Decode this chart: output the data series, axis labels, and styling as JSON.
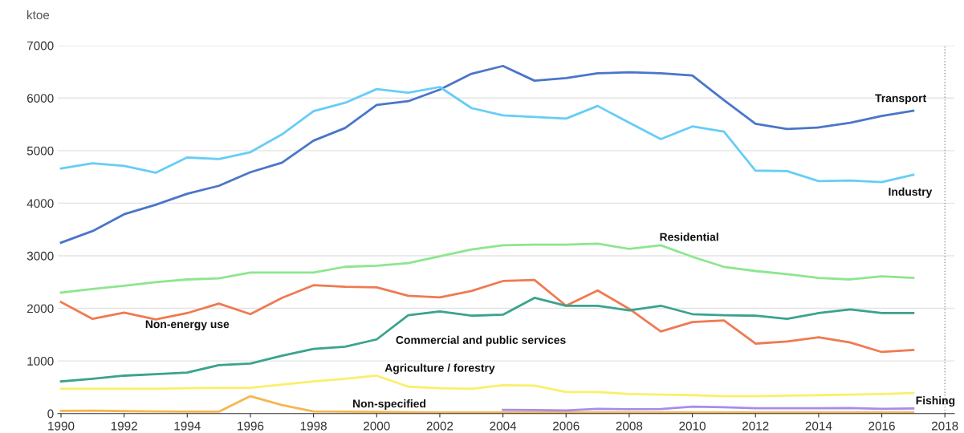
{
  "chart_data": {
    "type": "line",
    "ylabel": "ktoe",
    "x": [
      1990,
      1991,
      1992,
      1993,
      1994,
      1995,
      1996,
      1997,
      1998,
      1999,
      2000,
      2001,
      2002,
      2003,
      2004,
      2005,
      2006,
      2007,
      2008,
      2009,
      2010,
      2011,
      2012,
      2013,
      2014,
      2015,
      2016,
      2017
    ],
    "series": [
      {
        "name": "Transport",
        "color": "#4a76c9",
        "values": [
          3250,
          3470,
          3790,
          3970,
          4180,
          4330,
          4590,
          4770,
          5190,
          5430,
          5870,
          5940,
          6160,
          6460,
          6610,
          6330,
          6380,
          6470,
          6490,
          6470,
          6430,
          5960,
          5510,
          5410,
          5440,
          5530,
          5660,
          5760
        ]
      },
      {
        "name": "Industry",
        "color": "#67cdf6",
        "values": [
          4660,
          4760,
          4710,
          4580,
          4870,
          4840,
          4970,
          5310,
          5750,
          5910,
          6170,
          6100,
          6210,
          5810,
          5670,
          5640,
          5610,
          5850,
          5530,
          5220,
          5460,
          5360,
          4620,
          4610,
          4420,
          4430,
          4400,
          4540
        ]
      },
      {
        "name": "Residential",
        "color": "#8de68e",
        "values": [
          2300,
          2370,
          2430,
          2500,
          2550,
          2570,
          2680,
          2680,
          2680,
          2790,
          2810,
          2860,
          2990,
          3120,
          3200,
          3210,
          3210,
          3230,
          3130,
          3200,
          2980,
          2790,
          2710,
          2650,
          2580,
          2550,
          2610,
          2580
        ]
      },
      {
        "name": "Non-energy use",
        "color": "#ef7a52",
        "values": [
          2120,
          1800,
          1920,
          1790,
          1910,
          2090,
          1890,
          2200,
          2440,
          2410,
          2400,
          2240,
          2210,
          2330,
          2520,
          2540,
          2050,
          2340,
          1990,
          1560,
          1740,
          1770,
          1330,
          1370,
          1450,
          1350,
          1170,
          1210
        ]
      },
      {
        "name": "Commercial and public services",
        "color": "#3aa38f",
        "values": [
          610,
          660,
          720,
          750,
          780,
          920,
          950,
          1100,
          1230,
          1270,
          1410,
          1870,
          1940,
          1860,
          1880,
          2200,
          2050,
          2050,
          1960,
          2050,
          1890,
          1870,
          1860,
          1800,
          1910,
          1980,
          1910,
          1910
        ]
      },
      {
        "name": "Agriculture / forestry",
        "color": "#fbef6a",
        "values": [
          470,
          470,
          470,
          470,
          480,
          490,
          490,
          550,
          610,
          660,
          720,
          510,
          480,
          470,
          540,
          530,
          410,
          410,
          370,
          360,
          350,
          330,
          330,
          340,
          350,
          360,
          370,
          390
        ]
      },
      {
        "name": "Non-specified",
        "color": "#f5b74e",
        "values": [
          50,
          55,
          45,
          40,
          35,
          35,
          330,
          160,
          40,
          35,
          30,
          25,
          20,
          20,
          20,
          20,
          20,
          20,
          20,
          20,
          20,
          20,
          20,
          20,
          20,
          20,
          20,
          20
        ]
      },
      {
        "name": "Fishing",
        "color": "#a88bf0",
        "values": [
          null,
          null,
          null,
          null,
          null,
          null,
          null,
          null,
          null,
          null,
          null,
          null,
          null,
          null,
          70,
          65,
          60,
          90,
          80,
          85,
          130,
          120,
          100,
          100,
          100,
          105,
          90,
          95
        ]
      }
    ],
    "xlim": [
      1989.9,
      2018.3
    ],
    "xticks": [
      1990,
      1992,
      1994,
      1996,
      1998,
      2000,
      2002,
      2004,
      2006,
      2008,
      2010,
      2012,
      2014,
      2016,
      2018
    ],
    "ylim": [
      0,
      7000
    ],
    "yticks": [
      0,
      1000,
      2000,
      3000,
      4000,
      5000,
      6000,
      7000
    ],
    "ref_lines": [
      {
        "axis": "x",
        "value": 2018,
        "color": "#999999",
        "line_style": "dotted"
      }
    ],
    "grid": "y",
    "legend": false,
    "marker": "none",
    "line_style": "solid"
  }
}
